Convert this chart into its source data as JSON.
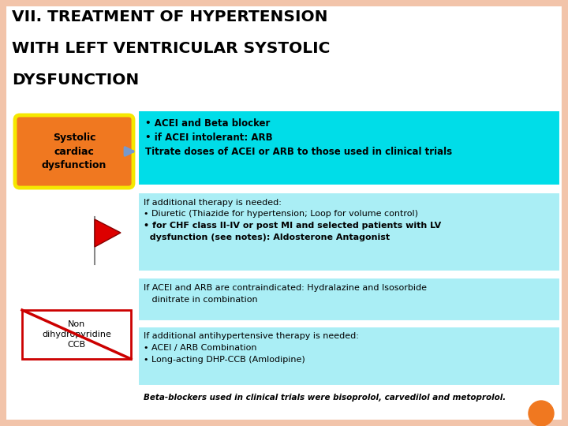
{
  "title_line1": "VII. TREATMENT OF HYPERTENSION",
  "title_line2": "WITH LEFT VENTRICULAR SYSTOLIC",
  "title_line3": "DYSFUNCTION",
  "background_color": "#f2c4aa",
  "inner_bg_color": "#ffffff",
  "box1_color": "#00dde8",
  "box2_color": "#aaeef5",
  "box3_color": "#aaeef5",
  "box4_color": "#aaeef5",
  "systolic_box_color": "#f07820",
  "systolic_box_border": "#f5e800",
  "systolic_text": "Systolic\ncardiac\ndysfunction",
  "non_dhp_box_color": "#ffffff",
  "non_dhp_box_border": "#cc0000",
  "non_dhp_text": "Non\ndihydropyridine\nCCB",
  "box1_line1": "• ACEI and Beta blocker",
  "box1_line2": "• if ACEI intolerant: ARB",
  "box1_line3": "Titrate doses of ACEI or ARB to those used in clinical trials",
  "box2_line1": "If additional therapy is needed:",
  "box2_line2": "• Diuretic (Thiazide for hypertension; Loop for volume control)",
  "box2_line3": "• for CHF class II-IV or post MI and selected patients with LV",
  "box2_line4": "  dysfunction (see notes): Aldosterone Antagonist",
  "box3_line1": "If ACEI and ARB are contraindicated: Hydralazine and Isosorbide",
  "box3_line2": "   dinitrate in combination",
  "box4_line1": "If additional antihypertensive therapy is needed:",
  "box4_line2": "• ACEI / ARB Combination",
  "box4_line3": "• Long-acting DHP-CCB (Amlodipine)",
  "footer_text": "Beta-blockers used in clinical trials were bisoprolol, carvedilol and metoprolol.",
  "arrow_color": "#7799cc",
  "orange_circle_color": "#f07820"
}
